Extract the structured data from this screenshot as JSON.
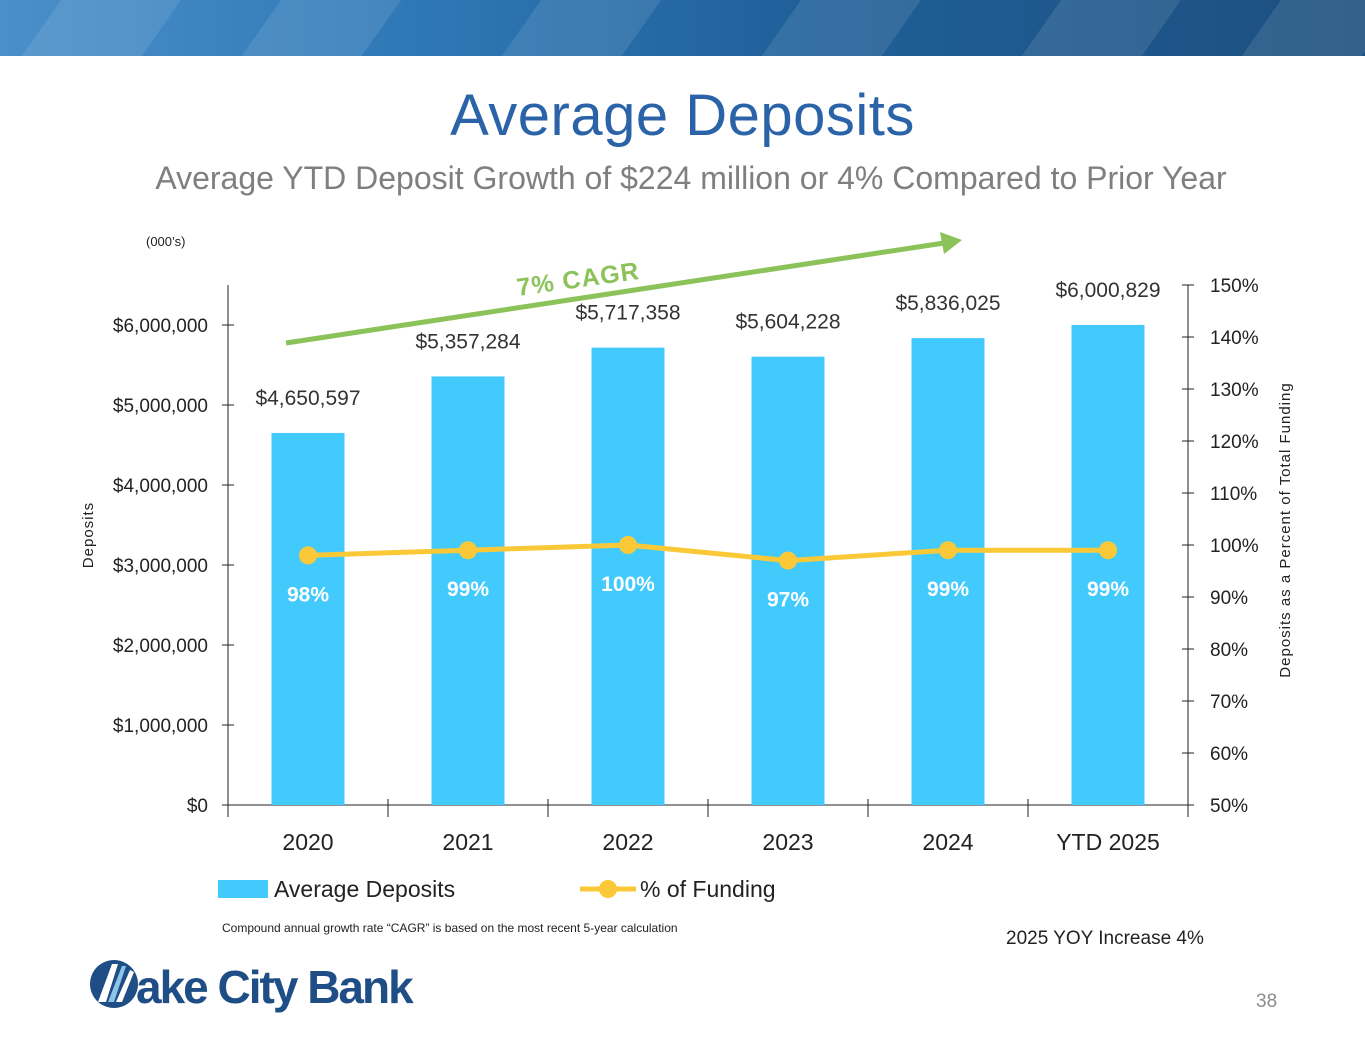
{
  "header": {
    "title": "Average Deposits",
    "subtitle": "Average YTD Deposit Growth of $224 million or 4% Compared to Prior Year"
  },
  "units_label": "(000’s)",
  "chart_data": {
    "type": "bar",
    "title": "",
    "categories": [
      "2020",
      "2021",
      "2022",
      "2023",
      "2024",
      "YTD 2025"
    ],
    "series": [
      {
        "name": "Average Deposits",
        "type": "bar",
        "axis": "left",
        "color": "#43cafd",
        "values": [
          4650597,
          5357284,
          5717358,
          5604228,
          5836025,
          6000829
        ],
        "labels": [
          "$4,650,597",
          "$5,357,284",
          "$5,717,358",
          "$5,604,228",
          "$5,836,025",
          "$6,000,829"
        ]
      },
      {
        "name": "% of Funding",
        "type": "line",
        "axis": "right",
        "color": "#fbc937",
        "values": [
          98,
          99,
          100,
          97,
          99,
          99
        ],
        "labels": [
          "98%",
          "99%",
          "100%",
          "97%",
          "99%",
          "99%"
        ]
      }
    ],
    "ylabel": "Deposits",
    "ylim": [
      0,
      6500000
    ],
    "yticks": [
      0,
      1000000,
      2000000,
      3000000,
      4000000,
      5000000,
      6000000
    ],
    "ytick_labels": [
      "$0",
      "$1,000,000",
      "$2,000,000",
      "$3,000,000",
      "$4,000,000",
      "$5,000,000",
      "$6,000,000"
    ],
    "y2label": "Deposits as a Percent of Total Funding",
    "y2lim": [
      50,
      150
    ],
    "y2ticks": [
      50,
      60,
      70,
      80,
      90,
      100,
      110,
      120,
      130,
      140,
      150
    ],
    "y2tick_labels": [
      "50%",
      "60%",
      "70%",
      "80%",
      "90%",
      "100%",
      "110%",
      "120%",
      "130%",
      "140%",
      "150%"
    ],
    "grid": false,
    "legend_position": "bottom-left",
    "annotation": {
      "text": "7% CAGR",
      "color": "#8bc35a"
    }
  },
  "footnote": "Compound annual growth rate “CAGR” is based on the most recent 5-year calculation",
  "yoy_note": "2025 YOY Increase 4%",
  "page_number": "38",
  "logo": {
    "text": "ake City Bank"
  }
}
